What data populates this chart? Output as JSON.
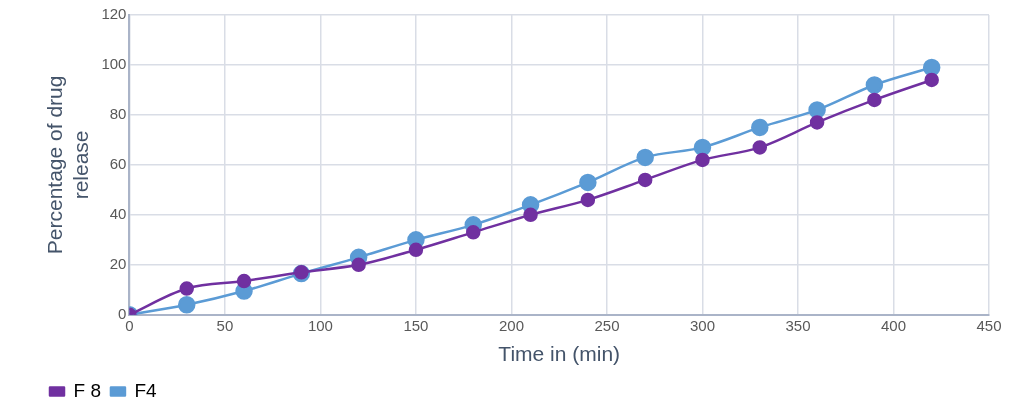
{
  "chart_data": {
    "type": "line",
    "xlabel": "Time in (min)",
    "ylabel": "Percentage of drug release",
    "x": [
      0,
      30,
      60,
      90,
      120,
      150,
      180,
      210,
      240,
      270,
      300,
      330,
      360,
      390,
      420
    ],
    "series": [
      {
        "name": "F 8",
        "color": "#7030a0",
        "values": [
          0,
          10.5,
          13.5,
          17,
          20,
          26,
          33,
          40,
          46,
          54,
          62,
          67,
          77,
          86,
          94
        ]
      },
      {
        "name": "F4",
        "color": "#5b9bd5",
        "values": [
          0,
          4,
          9.5,
          16.5,
          23,
          30,
          36,
          44,
          53,
          63,
          67,
          75,
          82,
          92,
          99
        ]
      }
    ],
    "xlim": [
      0,
      450
    ],
    "xticks": [
      0,
      50,
      100,
      150,
      200,
      250,
      300,
      350,
      400,
      450
    ],
    "ylim": [
      0,
      120
    ],
    "yticks": [
      0,
      20,
      40,
      60,
      80,
      100,
      120
    ],
    "grid": true,
    "legend": "bottom",
    "marker": "circle",
    "line_style": "solid"
  }
}
